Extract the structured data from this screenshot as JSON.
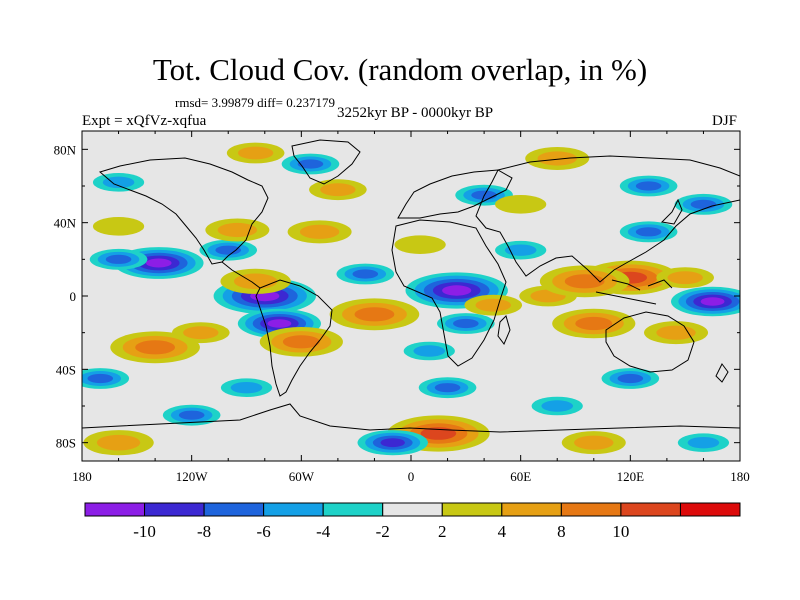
{
  "title": "Tot. Cloud Cov. (random overlap, in %)",
  "stats": "rmsd= 3.99879 diff= 0.237179",
  "period": "3252kyr BP - 0000kyr BP",
  "experiment": "Expt = xQfVz-xqfua",
  "season": "DJF",
  "lon_ticks": [
    "180",
    "120W",
    "60W",
    "0",
    "60E",
    "120E",
    "180"
  ],
  "lat_ticks": [
    "80N",
    "40N",
    "0",
    "40S",
    "80S"
  ],
  "colorbar": {
    "colors": [
      "#8c1ee6",
      "#3c28d2",
      "#1e64dc",
      "#14a0e6",
      "#1ed2c8",
      "#e6e6e6",
      "#c8c814",
      "#e6a014",
      "#e67814",
      "#dc461e",
      "#dc0a0a"
    ],
    "labels": [
      "-10",
      "-8",
      "-6",
      "-4",
      "-2",
      "2",
      "4",
      "8",
      "10"
    ]
  },
  "chart_data": {
    "type": "heatmap",
    "title": "Tot. Cloud Cov. (random overlap, in %)",
    "season": "DJF",
    "x_range": [
      -180,
      180
    ],
    "y_range": [
      -90,
      90
    ],
    "levels": [
      -10,
      -8,
      -6,
      -4,
      -2,
      2,
      4,
      8,
      10
    ],
    "features": [
      {
        "lon": -138,
        "lat": 18,
        "value": -9
      },
      {
        "lon": -160,
        "lat": 20,
        "value": -4
      },
      {
        "lon": -100,
        "lat": 25,
        "value": -4
      },
      {
        "lon": -95,
        "lat": 36,
        "value": 5
      },
      {
        "lon": -50,
        "lat": 35,
        "value": 5
      },
      {
        "lon": -160,
        "lat": 38,
        "value": 3
      },
      {
        "lon": -80,
        "lat": 0,
        "value": -11
      },
      {
        "lon": -72,
        "lat": -15,
        "value": -8
      },
      {
        "lon": -85,
        "lat": 8,
        "value": 6
      },
      {
        "lon": -140,
        "lat": -28,
        "value": 9
      },
      {
        "lon": -115,
        "lat": -20,
        "value": 4
      },
      {
        "lon": -60,
        "lat": -25,
        "value": 8
      },
      {
        "lon": -20,
        "lat": -10,
        "value": 9
      },
      {
        "lon": -25,
        "lat": 12,
        "value": -4
      },
      {
        "lon": 5,
        "lat": 28,
        "value": 3
      },
      {
        "lon": 25,
        "lat": 3,
        "value": -11
      },
      {
        "lon": 30,
        "lat": -15,
        "value": -4
      },
      {
        "lon": 10,
        "lat": -30,
        "value": -3
      },
      {
        "lon": 45,
        "lat": -5,
        "value": 4
      },
      {
        "lon": 60,
        "lat": 25,
        "value": -3
      },
      {
        "lon": 75,
        "lat": 0,
        "value": 4
      },
      {
        "lon": 120,
        "lat": 10,
        "value": 10
      },
      {
        "lon": 95,
        "lat": 8,
        "value": 9
      },
      {
        "lon": 150,
        "lat": 10,
        "value": 4
      },
      {
        "lon": 100,
        "lat": -15,
        "value": 8
      },
      {
        "lon": 165,
        "lat": -3,
        "value": -8
      },
      {
        "lon": 145,
        "lat": -20,
        "value": 5
      },
      {
        "lon": 130,
        "lat": 35,
        "value": -4
      },
      {
        "lon": 130,
        "lat": 60,
        "value": -4
      },
      {
        "lon": 40,
        "lat": 55,
        "value": -4
      },
      {
        "lon": -40,
        "lat": 58,
        "value": 4
      },
      {
        "lon": 80,
        "lat": 75,
        "value": 5
      },
      {
        "lon": -85,
        "lat": 78,
        "value": 4
      },
      {
        "lon": -55,
        "lat": 72,
        "value": -4
      },
      {
        "lon": 60,
        "lat": 50,
        "value": 3
      },
      {
        "lon": -160,
        "lat": 62,
        "value": -3
      },
      {
        "lon": 160,
        "lat": 50,
        "value": -4
      },
      {
        "lon": -170,
        "lat": -45,
        "value": -4
      },
      {
        "lon": -90,
        "lat": -50,
        "value": -3
      },
      {
        "lon": 20,
        "lat": -50,
        "value": -4
      },
      {
        "lon": 120,
        "lat": -45,
        "value": -4
      },
      {
        "lon": -120,
        "lat": -65,
        "value": -4
      },
      {
        "lon": 80,
        "lat": -60,
        "value": -3
      },
      {
        "lon": 15,
        "lat": -75,
        "value": 11
      },
      {
        "lon": -10,
        "lat": -80,
        "value": -6
      },
      {
        "lon": -160,
        "lat": -80,
        "value": 6
      },
      {
        "lon": 100,
        "lat": -80,
        "value": 5
      },
      {
        "lon": 160,
        "lat": -80,
        "value": -3
      }
    ]
  }
}
